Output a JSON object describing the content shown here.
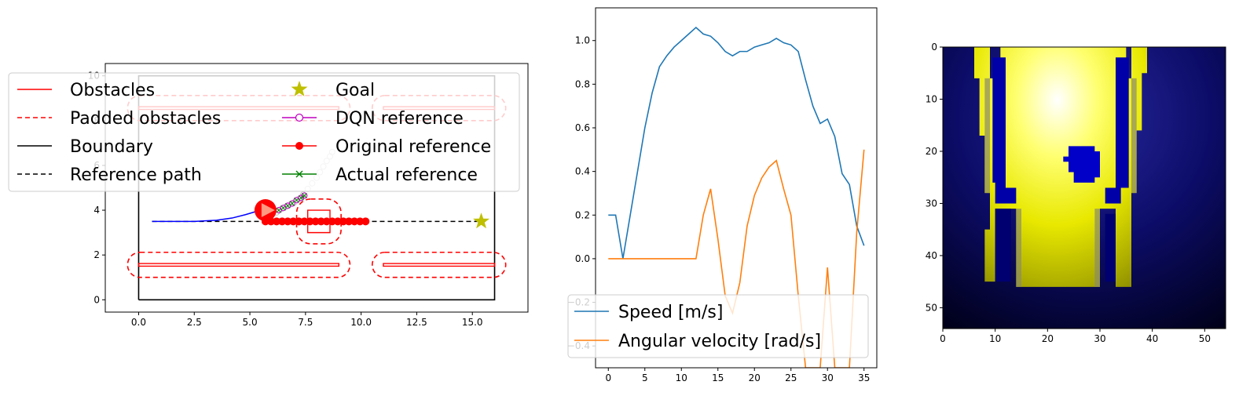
{
  "chart_data": [
    {
      "type": "line",
      "xlim": [
        -1.5,
        17.5
      ],
      "ylim": [
        -0.55,
        10.55
      ],
      "xticks": [
        "0.0",
        "2.5",
        "5.0",
        "7.5",
        "10.0",
        "12.5",
        "15.0"
      ],
      "yticks": [
        "0",
        "2",
        "4",
        "6",
        "8",
        "10"
      ],
      "legend": {
        "placement": "top-left",
        "entries": [
          {
            "label": "Obstacles",
            "color": "#ff0000",
            "style": "solid"
          },
          {
            "label": "Padded obstacles",
            "color": "#ff0000",
            "style": "dashed"
          },
          {
            "label": "Boundary",
            "color": "#000000",
            "style": "solid"
          },
          {
            "label": "Reference path",
            "color": "#000000",
            "style": "dashed"
          },
          {
            "label": "Goal",
            "color": "#bfbf00",
            "style": "star"
          },
          {
            "label": "DQN reference",
            "color": "#bf00bf",
            "style": "circle-open"
          },
          {
            "label": "Original reference",
            "color": "#ff0000",
            "style": "dot"
          },
          {
            "label": "Actual reference",
            "color": "#008000",
            "style": "x"
          }
        ]
      },
      "boundary": [
        [
          0,
          0
        ],
        [
          16,
          0
        ],
        [
          16,
          10
        ],
        [
          0,
          10
        ],
        [
          0,
          0
        ]
      ],
      "obstacles": [
        [
          [
            0,
            1.5
          ],
          [
            9,
            1.5
          ],
          [
            9,
            1.62
          ],
          [
            0,
            1.62
          ]
        ],
        [
          [
            11,
            1.5
          ],
          [
            16,
            1.5
          ],
          [
            16,
            1.62
          ],
          [
            11,
            1.62
          ]
        ],
        [
          [
            0,
            8.5
          ],
          [
            9,
            8.5
          ],
          [
            9,
            8.62
          ],
          [
            0,
            8.62
          ]
        ],
        [
          [
            11,
            8.5
          ],
          [
            16,
            8.5
          ],
          [
            16,
            8.62
          ],
          [
            11,
            8.62
          ]
        ],
        [
          [
            7.6,
            3
          ],
          [
            8.6,
            3
          ],
          [
            8.6,
            4
          ],
          [
            7.6,
            4
          ]
        ]
      ],
      "padded_obstacles": [
        {
          "x0": -0.5,
          "y0": 1.0,
          "x1": 9.5,
          "y1": 2.12
        },
        {
          "x0": 10.5,
          "y0": 1.0,
          "x1": 16.5,
          "y1": 2.12
        },
        {
          "x0": -0.5,
          "y0": 8.0,
          "x1": 9.5,
          "y1": 9.12
        },
        {
          "x0": 10.5,
          "y0": 8.0,
          "x1": 16.5,
          "y1": 9.12
        },
        {
          "x0": 7.1,
          "y0": 2.5,
          "x1": 9.1,
          "y1": 4.5
        }
      ],
      "reference_path": {
        "x": [
          0.6,
          15.4
        ],
        "y": [
          3.5,
          3.5
        ]
      },
      "goal": {
        "x": 15.4,
        "y": 3.5
      },
      "trajectory": {
        "color": "#0000ff",
        "x": [
          0.6,
          2.5,
          3.5,
          4.2,
          4.8,
          5.3,
          5.7
        ],
        "y": [
          3.5,
          3.5,
          3.55,
          3.65,
          3.8,
          3.95,
          4.0
        ]
      },
      "robot": {
        "x": 5.7,
        "y": 4.0
      },
      "original_reference": {
        "x": [
          5.7,
          5.95,
          6.2,
          6.45,
          6.7,
          6.95,
          7.2,
          7.45,
          7.7,
          7.95,
          8.2,
          8.45,
          8.7,
          8.95,
          9.2,
          9.45,
          9.7,
          9.95,
          10.2
        ],
        "y": [
          3.5,
          3.5,
          3.5,
          3.5,
          3.5,
          3.5,
          3.5,
          3.5,
          3.5,
          3.5,
          3.5,
          3.5,
          3.5,
          3.5,
          3.5,
          3.5,
          3.5,
          3.5,
          3.5
        ]
      },
      "dqn_reference": {
        "x": [
          6.2,
          6.4,
          6.6,
          6.8,
          7.0,
          7.2,
          7.4,
          7.6,
          7.8,
          8.0,
          8.15,
          8.3,
          8.45,
          8.6,
          8.7
        ],
        "y": [
          3.9,
          4.05,
          4.15,
          4.25,
          4.35,
          4.5,
          4.7,
          4.95,
          5.2,
          5.45,
          5.7,
          5.95,
          6.2,
          6.4,
          6.6
        ]
      },
      "actual_reference": {
        "x": [
          6.3,
          6.5,
          6.7,
          6.9,
          7.1,
          7.3,
          7.45
        ],
        "y": [
          4.0,
          4.1,
          4.2,
          4.3,
          4.45,
          4.55,
          4.65
        ]
      }
    },
    {
      "type": "line",
      "xlim": [
        -1.75,
        36.75
      ],
      "ylim": [
        -0.5,
        1.15
      ],
      "xticks": [
        "0",
        "5",
        "10",
        "15",
        "20",
        "25",
        "30",
        "35"
      ],
      "yticks": [
        "−0.4",
        "−0.2",
        "0.0",
        "0.2",
        "0.4",
        "0.6",
        "0.8",
        "1.0"
      ],
      "legend": {
        "placement": "bottom-left"
      },
      "series": [
        {
          "name": "Speed [m/s]",
          "color": "#1f77b4",
          "x": [
            0,
            1,
            2,
            3,
            4,
            5,
            6,
            7,
            8,
            9,
            10,
            11,
            12,
            13,
            14,
            15,
            16,
            17,
            18,
            19,
            20,
            21,
            22,
            23,
            24,
            25,
            26,
            27,
            28,
            29,
            30,
            31,
            32,
            33,
            34,
            35
          ],
          "y": [
            0.2,
            0.2,
            0.0,
            0.2,
            0.4,
            0.6,
            0.76,
            0.88,
            0.93,
            0.97,
            1.0,
            1.03,
            1.06,
            1.03,
            1.02,
            0.99,
            0.95,
            0.93,
            0.95,
            0.95,
            0.97,
            0.98,
            0.99,
            1.01,
            0.99,
            0.98,
            0.95,
            0.82,
            0.7,
            0.62,
            0.64,
            0.56,
            0.39,
            0.34,
            0.15,
            0.06
          ]
        },
        {
          "name": "Angular velocity [rad/s]",
          "color": "#ff7f0e",
          "x": [
            0,
            1,
            2,
            3,
            4,
            5,
            6,
            7,
            8,
            9,
            10,
            11,
            12,
            13,
            14,
            15,
            16,
            17,
            18,
            19,
            20,
            21,
            22,
            23,
            24,
            25,
            26,
            27,
            28,
            29,
            30,
            31,
            32,
            33,
            34,
            35
          ],
          "y": [
            0,
            0,
            0,
            0,
            0,
            0,
            0,
            0,
            0,
            0,
            0,
            0,
            0,
            0.2,
            0.32,
            0.09,
            -0.17,
            -0.25,
            -0.11,
            0.15,
            0.29,
            0.37,
            0.42,
            0.45,
            0.32,
            0.2,
            -0.17,
            -0.5,
            -0.5,
            -0.5,
            -0.04,
            -0.5,
            -0.5,
            -0.5,
            0.12,
            0.5
          ]
        }
      ]
    },
    {
      "type": "heatmap",
      "xlim": [
        0,
        54
      ],
      "ylim": [
        54,
        0
      ],
      "xticks": [
        "0",
        "10",
        "20",
        "30",
        "40",
        "50"
      ],
      "yticks": [
        "0",
        "10",
        "20",
        "30",
        "40",
        "50"
      ]
    }
  ]
}
